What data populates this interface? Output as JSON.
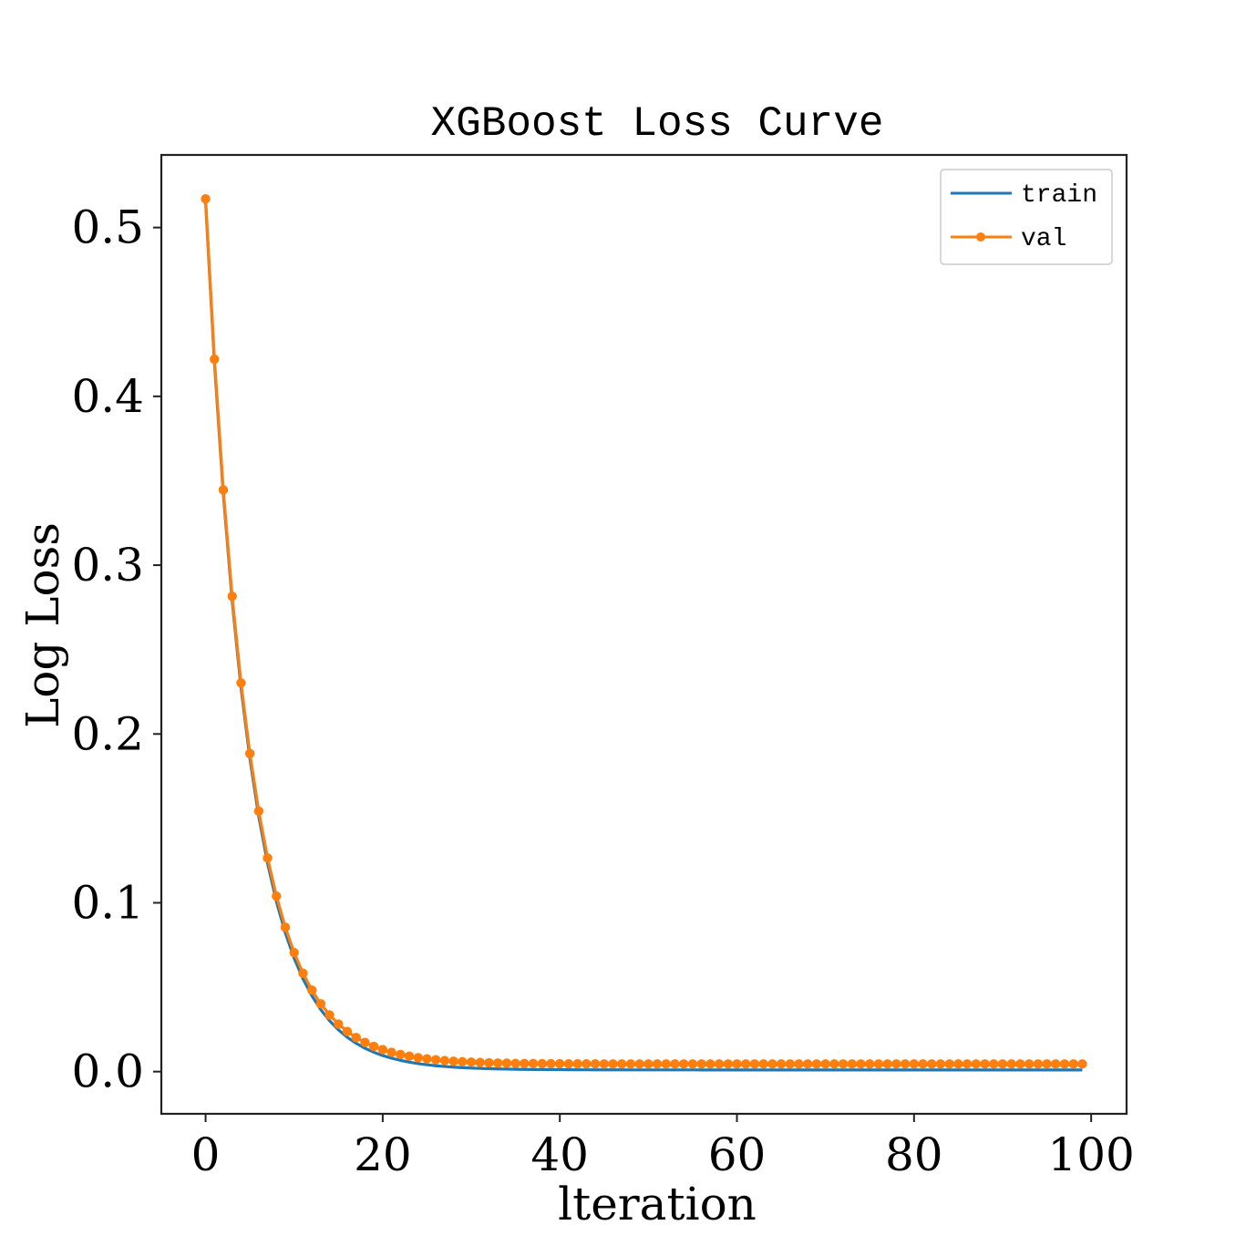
{
  "chart_data": {
    "type": "line",
    "title": "XGBoost Loss Curve",
    "xlabel": "lteration",
    "ylabel": "Log Loss",
    "xlim": [
      -5,
      104
    ],
    "ylim": [
      -0.025,
      0.543
    ],
    "xticks": [
      0,
      20,
      40,
      60,
      80,
      100
    ],
    "yticks": [
      0.0,
      0.1,
      0.2,
      0.3,
      0.4,
      0.5
    ],
    "xtick_labels": [
      "0",
      "20",
      "40",
      "60",
      "80",
      "100"
    ],
    "ytick_labels": [
      "0.0",
      "0.1",
      "0.2",
      "0.3",
      "0.4",
      "0.5"
    ],
    "grid": false,
    "legend_position": "top-right",
    "x_start": 0,
    "x_end": 99,
    "series": [
      {
        "name": "train",
        "color": "#1f77b4",
        "marker": "none",
        "model": "exponential_decay",
        "start": 0.515,
        "floor": 0.001,
        "decay_rate": 0.205
      },
      {
        "name": "val",
        "color": "#ff7f0e",
        "marker": "circle",
        "model": "exponential_decay",
        "start": 0.517,
        "floor": 0.0045,
        "decay_rate": 0.205
      }
    ]
  }
}
